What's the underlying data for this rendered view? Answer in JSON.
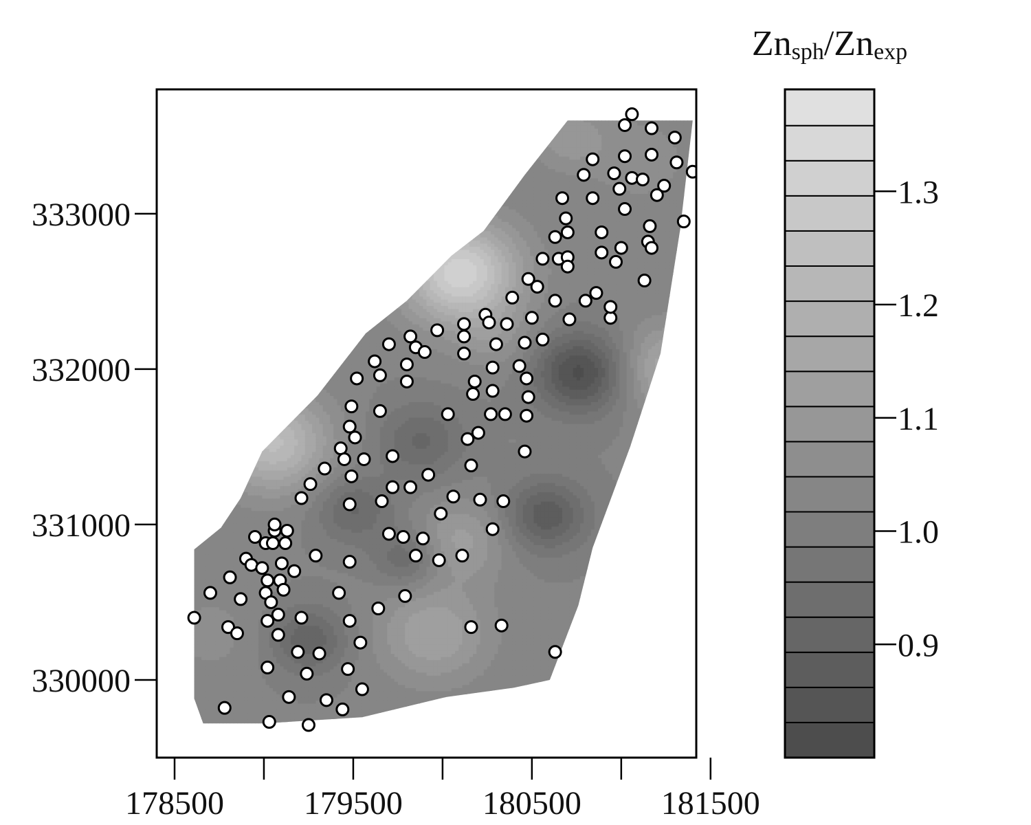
{
  "chart_data": {
    "type": "heatmap",
    "title": "",
    "xlabel": "",
    "ylabel": "",
    "xlim": [
      178400,
      181420
    ],
    "ylim": [
      329500,
      333800
    ],
    "x_ticks": [
      178500,
      179000,
      179500,
      180000,
      180500,
      181000,
      181500
    ],
    "x_tick_labels": [
      "178500",
      "",
      "179500",
      "",
      "180500",
      "",
      "181500"
    ],
    "y_ticks": [
      330000,
      331000,
      332000,
      333000
    ],
    "y_tick_labels": [
      "330000",
      "331000",
      "332000",
      "333000"
    ],
    "grid": false,
    "colorbar": {
      "title_base_1": "Zn",
      "title_sub_1": "sph",
      "title_sep": "/",
      "title_base_2": "Zn",
      "title_sub_2": "exp",
      "range": [
        0.8,
        1.39
      ],
      "breaks": [
        0.8,
        0.831,
        0.862,
        0.893,
        0.924,
        0.955,
        0.986,
        1.017,
        1.048,
        1.079,
        1.11,
        1.141,
        1.172,
        1.203,
        1.234,
        1.265,
        1.296,
        1.327,
        1.358,
        1.39
      ],
      "ticks": [
        0.9,
        1.0,
        1.1,
        1.2,
        1.3
      ],
      "tick_labels": [
        "0.9",
        "1.0",
        "1.1",
        "1.2",
        "1.3"
      ],
      "color_low": "#4d4d4d",
      "color_high": "#e0e0e0"
    },
    "region_polygon": [
      [
        178610,
        330840
      ],
      [
        178760,
        330980
      ],
      [
        178870,
        331170
      ],
      [
        178990,
        331470
      ],
      [
        179300,
        331830
      ],
      [
        179570,
        332230
      ],
      [
        179800,
        332440
      ],
      [
        180050,
        332730
      ],
      [
        180230,
        332890
      ],
      [
        180460,
        333250
      ],
      [
        180700,
        333600
      ],
      [
        181400,
        333600
      ],
      [
        181330,
        332900
      ],
      [
        181220,
        332100
      ],
      [
        181050,
        331500
      ],
      [
        180840,
        330850
      ],
      [
        180760,
        330480
      ],
      [
        180600,
        330000
      ],
      [
        180400,
        329950
      ],
      [
        180020,
        329890
      ],
      [
        179550,
        329760
      ],
      [
        179000,
        329720
      ],
      [
        178660,
        329720
      ],
      [
        178610,
        329880
      ]
    ],
    "field_base": 1.02,
    "field_anomalies": [
      {
        "x": 180100,
        "y": 332620,
        "amp": 0.3,
        "r": 230
      },
      {
        "x": 179050,
        "y": 331530,
        "amp": 0.22,
        "r": 220
      },
      {
        "x": 181280,
        "y": 332000,
        "amp": 0.15,
        "r": 200
      },
      {
        "x": 180770,
        "y": 331980,
        "amp": -0.2,
        "r": 180
      },
      {
        "x": 180580,
        "y": 331060,
        "amp": -0.15,
        "r": 160
      },
      {
        "x": 179500,
        "y": 331100,
        "amp": -0.1,
        "r": 150
      },
      {
        "x": 179880,
        "y": 331540,
        "amp": -0.1,
        "r": 170
      },
      {
        "x": 179250,
        "y": 330260,
        "amp": -0.12,
        "r": 150
      },
      {
        "x": 179800,
        "y": 330780,
        "amp": -0.1,
        "r": 130
      },
      {
        "x": 179950,
        "y": 330300,
        "amp": 0.12,
        "r": 220
      },
      {
        "x": 180100,
        "y": 330900,
        "amp": 0.1,
        "r": 180
      },
      {
        "x": 178700,
        "y": 330300,
        "amp": 0.04,
        "r": 200
      },
      {
        "x": 180300,
        "y": 332200,
        "amp": 0.05,
        "r": 150
      },
      {
        "x": 181100,
        "y": 333350,
        "amp": 0.05,
        "r": 200
      },
      {
        "x": 180700,
        "y": 333500,
        "amp": 0.08,
        "r": 150
      }
    ],
    "points": [
      [
        178610,
        330400
      ],
      [
        178700,
        330560
      ],
      [
        178800,
        330340
      ],
      [
        178810,
        330660
      ],
      [
        178850,
        330300
      ],
      [
        178870,
        330520
      ],
      [
        178780,
        329820
      ],
      [
        178900,
        330780
      ],
      [
        178930,
        330740
      ],
      [
        178950,
        330920
      ],
      [
        178990,
        330720
      ],
      [
        179010,
        330880
      ],
      [
        179020,
        330080
      ],
      [
        179020,
        330380
      ],
      [
        179010,
        330560
      ],
      [
        179020,
        330640
      ],
      [
        179040,
        330500
      ],
      [
        179050,
        330880
      ],
      [
        179060,
        330960
      ],
      [
        179060,
        331000
      ],
      [
        179080,
        330420
      ],
      [
        179080,
        330290
      ],
      [
        179090,
        330640
      ],
      [
        179100,
        330750
      ],
      [
        179110,
        330580
      ],
      [
        179120,
        330880
      ],
      [
        179130,
        330960
      ],
      [
        179170,
        330700
      ],
      [
        179030,
        329730
      ],
      [
        179140,
        329890
      ],
      [
        179190,
        330180
      ],
      [
        179210,
        330400
      ],
      [
        179210,
        331170
      ],
      [
        179240,
        330040
      ],
      [
        179260,
        331260
      ],
      [
        179250,
        329710
      ],
      [
        179290,
        330800
      ],
      [
        179310,
        330170
      ],
      [
        179340,
        331360
      ],
      [
        179350,
        329870
      ],
      [
        179420,
        330560
      ],
      [
        179430,
        331490
      ],
      [
        179450,
        331420
      ],
      [
        179440,
        329810
      ],
      [
        179470,
        330070
      ],
      [
        179480,
        330760
      ],
      [
        179480,
        331130
      ],
      [
        179490,
        331310
      ],
      [
        179480,
        330380
      ],
      [
        179480,
        331630
      ],
      [
        179490,
        331760
      ],
      [
        179510,
        331560
      ],
      [
        179520,
        331940
      ],
      [
        179540,
        330240
      ],
      [
        179550,
        329940
      ],
      [
        179560,
        331420
      ],
      [
        179620,
        332050
      ],
      [
        179640,
        330460
      ],
      [
        179650,
        331730
      ],
      [
        179650,
        331960
      ],
      [
        179660,
        331150
      ],
      [
        179700,
        330940
      ],
      [
        179700,
        332160
      ],
      [
        179720,
        331440
      ],
      [
        179720,
        331240
      ],
      [
        179790,
        330540
      ],
      [
        179780,
        330920
      ],
      [
        179800,
        331920
      ],
      [
        179800,
        332030
      ],
      [
        179820,
        331240
      ],
      [
        179820,
        332210
      ],
      [
        179850,
        332140
      ],
      [
        179850,
        330800
      ],
      [
        179890,
        330910
      ],
      [
        179900,
        332110
      ],
      [
        179920,
        331320
      ],
      [
        179970,
        332250
      ],
      [
        179980,
        330770
      ],
      [
        179990,
        331070
      ],
      [
        180030,
        331710
      ],
      [
        180060,
        331180
      ],
      [
        180110,
        330800
      ],
      [
        180120,
        332290
      ],
      [
        180120,
        332100
      ],
      [
        180120,
        332210
      ],
      [
        180140,
        331550
      ],
      [
        180160,
        330340
      ],
      [
        180160,
        331380
      ],
      [
        180170,
        331840
      ],
      [
        180180,
        331920
      ],
      [
        180200,
        331590
      ],
      [
        180210,
        331160
      ],
      [
        180240,
        332350
      ],
      [
        180260,
        332300
      ],
      [
        180270,
        331710
      ],
      [
        180280,
        330970
      ],
      [
        180280,
        331860
      ],
      [
        180280,
        332010
      ],
      [
        180300,
        332160
      ],
      [
        180330,
        330350
      ],
      [
        180340,
        331150
      ],
      [
        180350,
        331710
      ],
      [
        180360,
        332290
      ],
      [
        180390,
        332460
      ],
      [
        180430,
        332020
      ],
      [
        180460,
        331470
      ],
      [
        180460,
        332170
      ],
      [
        180470,
        331940
      ],
      [
        180470,
        331700
      ],
      [
        180480,
        331820
      ],
      [
        180480,
        332580
      ],
      [
        180500,
        332330
      ],
      [
        180530,
        332530
      ],
      [
        180560,
        332710
      ],
      [
        180560,
        332190
      ],
      [
        180630,
        332850
      ],
      [
        180630,
        332440
      ],
      [
        180630,
        330180
      ],
      [
        180650,
        332710
      ],
      [
        180670,
        333100
      ],
      [
        180690,
        332970
      ],
      [
        180700,
        332720
      ],
      [
        180700,
        332880
      ],
      [
        180700,
        332660
      ],
      [
        180710,
        332320
      ],
      [
        180790,
        333250
      ],
      [
        180800,
        332440
      ],
      [
        180840,
        333350
      ],
      [
        180840,
        333100
      ],
      [
        180860,
        332490
      ],
      [
        180890,
        332880
      ],
      [
        180890,
        332750
      ],
      [
        180940,
        332330
      ],
      [
        180940,
        332400
      ],
      [
        180960,
        333260
      ],
      [
        180970,
        332690
      ],
      [
        180990,
        333160
      ],
      [
        181000,
        332780
      ],
      [
        181020,
        333030
      ],
      [
        181020,
        333370
      ],
      [
        181020,
        333570
      ],
      [
        181060,
        333230
      ],
      [
        181060,
        333640
      ],
      [
        181120,
        333220
      ],
      [
        181130,
        332570
      ],
      [
        181150,
        332820
      ],
      [
        181160,
        332920
      ],
      [
        181170,
        332780
      ],
      [
        181170,
        333380
      ],
      [
        181170,
        333550
      ],
      [
        181200,
        333120
      ],
      [
        181240,
        333180
      ],
      [
        181300,
        333490
      ],
      [
        181310,
        333330
      ],
      [
        181350,
        332950
      ],
      [
        181400,
        333270
      ]
    ]
  }
}
